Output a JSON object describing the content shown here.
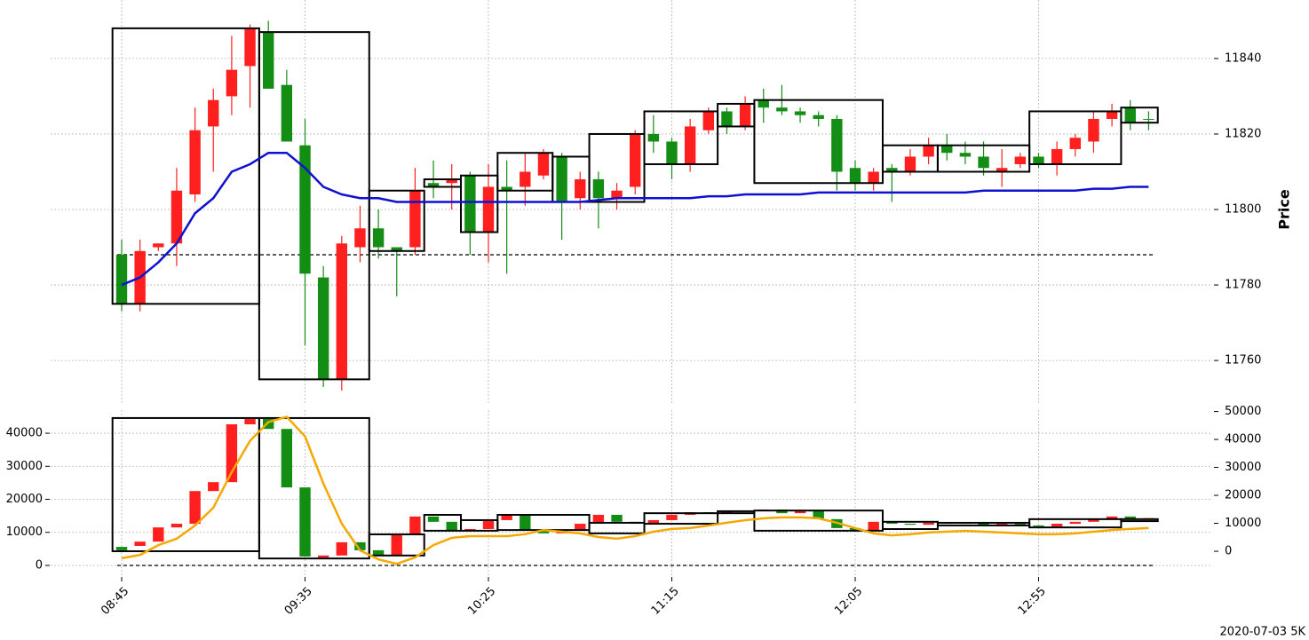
{
  "footer": "2020-07-03 5K",
  "chart_data": [
    {
      "type": "candlestick",
      "ylabel": "Price",
      "grid": true,
      "up_color": "#ff1f1f",
      "down_color": "#138d13",
      "open": [
        11788,
        11775,
        11790,
        11791,
        11804,
        11822,
        11830,
        11838,
        11847,
        11833,
        11817,
        11782,
        11755,
        11790,
        11795,
        11790,
        11790,
        11807,
        11807,
        11809,
        11794,
        11806,
        11806,
        11809,
        11814,
        11803,
        11808,
        11803,
        11806,
        11820,
        11818,
        11812,
        11821,
        11826,
        11822,
        11829,
        11827,
        11826,
        11825,
        11824,
        11811,
        11807,
        11811,
        11810,
        11814,
        11817,
        11815,
        11814,
        11810,
        11812,
        11814,
        11812,
        11816,
        11818,
        11824,
        11827,
        11824
      ],
      "high": [
        11792,
        11792,
        11791,
        11811,
        11827,
        11832,
        11846,
        11849,
        11850,
        11837,
        11824,
        11785,
        11793,
        11801,
        11800,
        11790,
        11811,
        11813,
        11812,
        11810,
        11812,
        11813,
        11815,
        11816,
        11815,
        11810,
        11810,
        11807,
        11821,
        11825,
        11819,
        11824,
        11827,
        11827,
        11830,
        11832,
        11833,
        11827,
        11826,
        11825,
        11813,
        11811,
        11812,
        11816,
        11819,
        11820,
        11818,
        11818,
        11816,
        11815,
        11815,
        11818,
        11820,
        11826,
        11828,
        11829,
        11826
      ],
      "low": [
        11773,
        11773,
        11789,
        11785,
        11802,
        11810,
        11825,
        11827,
        11832,
        11818,
        11764,
        11753,
        11752,
        11786,
        11787,
        11777,
        11788,
        11803,
        11800,
        11788,
        11786,
        11783,
        11801,
        11808,
        11792,
        11800,
        11795,
        11800,
        11804,
        11815,
        11808,
        11810,
        11820,
        11820,
        11821,
        11823,
        11825,
        11823,
        11822,
        11805,
        11805,
        11805,
        11802,
        11809,
        11812,
        11813,
        11812,
        11809,
        11806,
        11811,
        11811,
        11809,
        11814,
        11815,
        11822,
        11821,
        11821
      ],
      "close": [
        11775,
        11789,
        11791,
        11805,
        11821,
        11829,
        11837,
        11848,
        11832,
        11818,
        11783,
        11755,
        11791,
        11795,
        11790,
        11789,
        11805,
        11806,
        11808,
        11794,
        11806,
        11805,
        11810,
        11815,
        11802,
        11808,
        11803,
        11805,
        11820,
        11818,
        11812,
        11822,
        11826,
        11822,
        11828,
        11827,
        11826,
        11825,
        11824,
        11810,
        11807,
        11810,
        11810,
        11814,
        11817,
        11815,
        11814,
        11811,
        11811,
        11814,
        11812,
        11816,
        11819,
        11824,
        11826,
        11823,
        11824
      ],
      "ma": {
        "color": "#1010d0",
        "values": [
          11780,
          11782,
          11786,
          11791,
          11799,
          11803,
          11810,
          11812,
          11815,
          11815,
          11811,
          11806,
          11804,
          11803,
          11803,
          11802,
          11802,
          11802,
          11802,
          11802,
          11802,
          11802,
          11802,
          11802,
          11802,
          11802,
          11802.5,
          11803,
          11803,
          11803,
          11803,
          11803,
          11803.5,
          11803.5,
          11804,
          11804,
          11804,
          11804,
          11804.5,
          11804.5,
          11804.5,
          11804.5,
          11804.5,
          11804.5,
          11804.5,
          11804.5,
          11804.5,
          11805,
          11805,
          11805,
          11805,
          11805,
          11805,
          11805.5,
          11805.5,
          11806,
          11806
        ]
      },
      "boxes": [
        {
          "start": 0,
          "end": 7,
          "low": 11775,
          "high": 11848
        },
        {
          "start": 8,
          "end": 13,
          "low": 11755,
          "high": 11847
        },
        {
          "start": 14,
          "end": 16,
          "low": 11789,
          "high": 11805
        },
        {
          "start": 17,
          "end": 18,
          "low": 11806,
          "high": 11808
        },
        {
          "start": 19,
          "end": 20,
          "low": 11794,
          "high": 11809
        },
        {
          "start": 21,
          "end": 23,
          "low": 11805,
          "high": 11815
        },
        {
          "start": 24,
          "end": 25,
          "low": 11802,
          "high": 11814
        },
        {
          "start": 26,
          "end": 28,
          "low": 11802,
          "high": 11820
        },
        {
          "start": 29,
          "end": 32,
          "low": 11812,
          "high": 11826
        },
        {
          "start": 33,
          "end": 34,
          "low": 11822,
          "high": 11828
        },
        {
          "start": 35,
          "end": 41,
          "low": 11807,
          "high": 11829
        },
        {
          "start": 42,
          "end": 44,
          "low": 11810,
          "high": 11817
        },
        {
          "start": 45,
          "end": 49,
          "low": 11810,
          "high": 11817
        },
        {
          "start": 50,
          "end": 54,
          "low": 11812,
          "high": 11826
        },
        {
          "start": 55,
          "end": 56,
          "low": 11823,
          "high": 11827
        }
      ],
      "hline": 11788,
      "ylim": [
        11748.5,
        11855.5
      ],
      "yticks": [
        11760,
        11780,
        11800,
        11820,
        11840
      ]
    },
    {
      "type": "candlestick",
      "grid": true,
      "up_color": "#ff1f1f",
      "down_color": "#138d13",
      "categories": [
        "08:45",
        null,
        null,
        null,
        null,
        null,
        null,
        null,
        null,
        null,
        "09:35",
        null,
        null,
        null,
        null,
        null,
        null,
        null,
        null,
        null,
        "10:25",
        null,
        null,
        null,
        null,
        null,
        null,
        null,
        null,
        null,
        "11:15",
        null,
        null,
        null,
        null,
        null,
        null,
        null,
        null,
        null,
        "12:05",
        null,
        null,
        null,
        null,
        null,
        null,
        null,
        null,
        null,
        "12:55",
        null,
        null,
        null,
        null,
        null,
        null
      ],
      "open": [
        5600,
        5900,
        7200,
        11500,
        12600,
        22500,
        25200,
        42700,
        44300,
        41300,
        23600,
        2400,
        3000,
        7000,
        4600,
        3000,
        9400,
        14800,
        13200,
        10500,
        11000,
        13700,
        15300,
        10700,
        9700,
        10700,
        12600,
        15300,
        13200,
        12600,
        13700,
        15300,
        16100,
        15800,
        16600,
        16400,
        16900,
        15800,
        16400,
        14000,
        11300,
        10500,
        13200,
        12600,
        12300,
        12900,
        12600,
        12900,
        12300,
        12600,
        12100,
        11800,
        12600,
        13200,
        14000,
        14800,
        14000
      ],
      "close": [
        4600,
        7200,
        11500,
        12600,
        22500,
        25200,
        42700,
        44300,
        41300,
        23600,
        2700,
        3000,
        7000,
        4600,
        3000,
        9400,
        14800,
        13200,
        10500,
        11000,
        13700,
        15300,
        10700,
        9700,
        10700,
        12600,
        15300,
        13200,
        12600,
        13700,
        15300,
        16100,
        15800,
        16600,
        16400,
        16900,
        15800,
        16400,
        14000,
        11300,
        10500,
        13200,
        12600,
        12300,
        12900,
        12600,
        12900,
        12300,
        12600,
        12100,
        11800,
        12600,
        13200,
        14000,
        14800,
        14000,
        14300
      ],
      "line": {
        "axis": "y2",
        "color": "#f5a800",
        "values": [
          -2500,
          -1300,
          2200,
          4500,
          9200,
          15600,
          28300,
          39500,
          46200,
          48100,
          41100,
          24200,
          9900,
          300,
          -2900,
          -4500,
          -2200,
          2200,
          4800,
          5400,
          5400,
          5400,
          6100,
          7600,
          7000,
          6400,
          5100,
          4500,
          5400,
          7000,
          8000,
          8300,
          9200,
          10200,
          11100,
          11800,
          12100,
          12100,
          11800,
          10200,
          8300,
          6400,
          5700,
          6100,
          6700,
          7000,
          7300,
          7000,
          6700,
          6400,
          6100,
          6100,
          6400,
          7000,
          7600,
          8000,
          8300
        ]
      },
      "boxes": [
        {
          "start": 0,
          "end": 7,
          "low": 4300,
          "high": 44600
        },
        {
          "start": 8,
          "end": 13,
          "low": 2100,
          "high": 44600
        },
        {
          "start": 14,
          "end": 16,
          "low": 3000,
          "high": 9400
        },
        {
          "start": 17,
          "end": 18,
          "low": 10500,
          "high": 15300
        },
        {
          "start": 19,
          "end": 20,
          "low": 10500,
          "high": 13700
        },
        {
          "start": 21,
          "end": 25,
          "low": 10700,
          "high": 15300
        },
        {
          "start": 26,
          "end": 28,
          "low": 9700,
          "high": 12900
        },
        {
          "start": 29,
          "end": 32,
          "low": 12600,
          "high": 15800
        },
        {
          "start": 33,
          "end": 34,
          "low": 15800,
          "high": 16400
        },
        {
          "start": 35,
          "end": 41,
          "low": 10500,
          "high": 16600
        },
        {
          "start": 42,
          "end": 44,
          "low": 11000,
          "high": 13200
        },
        {
          "start": 45,
          "end": 49,
          "low": 12100,
          "high": 12900
        },
        {
          "start": 50,
          "end": 54,
          "low": 11500,
          "high": 14000
        },
        {
          "start": 55,
          "end": 56,
          "low": 13400,
          "high": 14000
        }
      ],
      "hline": 0,
      "ylim": [
        -3500,
        47000
      ],
      "yticks": [
        0,
        10000,
        20000,
        30000,
        40000
      ],
      "y2lim": [
        -9200,
        50500
      ],
      "y2ticks": [
        0,
        10000,
        20000,
        30000,
        40000,
        50000
      ]
    }
  ]
}
